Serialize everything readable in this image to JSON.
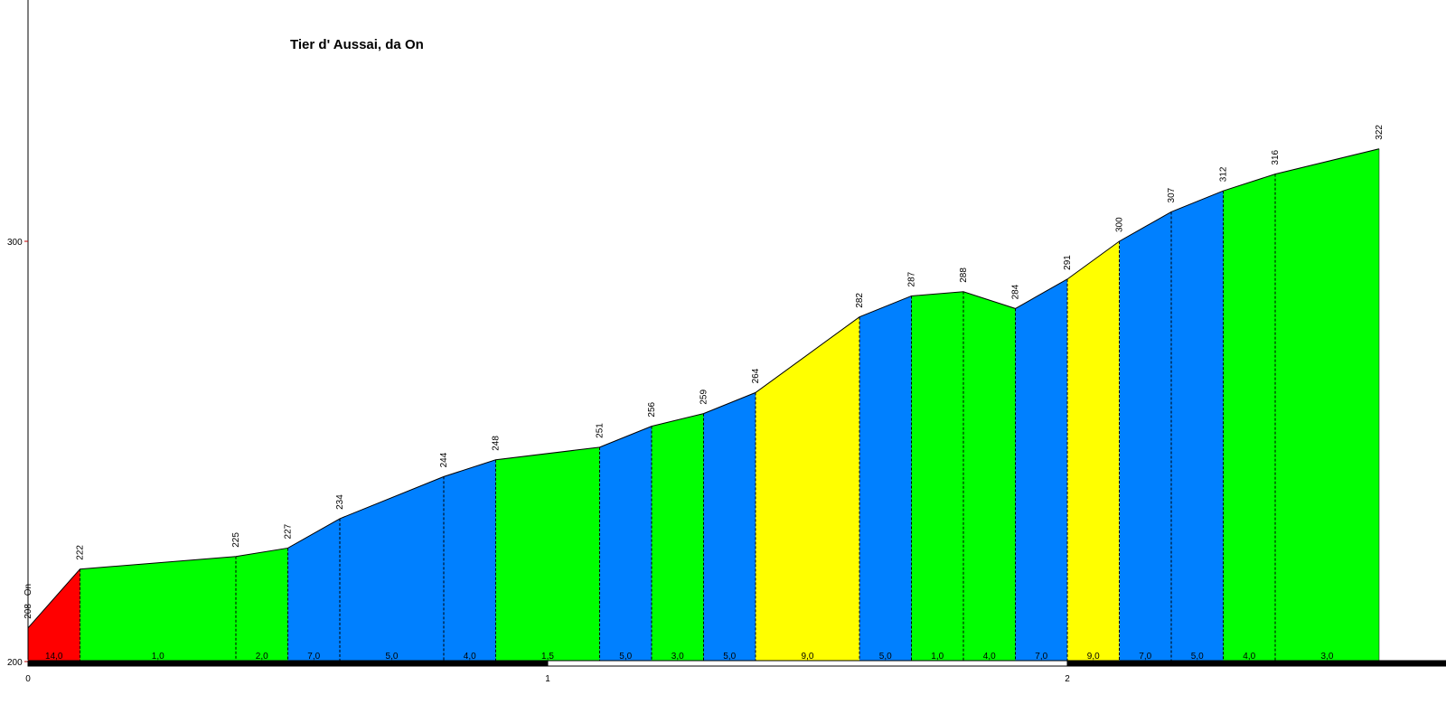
{
  "chart_data": {
    "type": "area",
    "title": "Tier d' Aussai, da On",
    "start_label": "208 - On",
    "xlim": [
      0,
      2.78
    ],
    "ylim": [
      200,
      322
    ],
    "x_ticks": [
      0,
      1,
      2
    ],
    "y_ticks": [
      200,
      300
    ],
    "points": [
      {
        "x": 0.0,
        "y": 208
      },
      {
        "x": 0.1,
        "y": 222
      },
      {
        "x": 0.4,
        "y": 225
      },
      {
        "x": 0.5,
        "y": 227
      },
      {
        "x": 0.6,
        "y": 234
      },
      {
        "x": 0.8,
        "y": 244
      },
      {
        "x": 0.9,
        "y": 248
      },
      {
        "x": 1.1,
        "y": 251
      },
      {
        "x": 1.2,
        "y": 256
      },
      {
        "x": 1.3,
        "y": 259
      },
      {
        "x": 1.4,
        "y": 264
      },
      {
        "x": 1.6,
        "y": 282
      },
      {
        "x": 1.7,
        "y": 287
      },
      {
        "x": 1.8,
        "y": 288
      },
      {
        "x": 1.9,
        "y": 284
      },
      {
        "x": 2.0,
        "y": 291
      },
      {
        "x": 2.1,
        "y": 300
      },
      {
        "x": 2.2,
        "y": 307
      },
      {
        "x": 2.3,
        "y": 312
      },
      {
        "x": 2.4,
        "y": 316
      },
      {
        "x": 2.6,
        "y": 322
      }
    ],
    "segments": [
      {
        "grade": "14,0",
        "color": "#ff0000"
      },
      {
        "grade": "1,0",
        "color": "#00ff00"
      },
      {
        "grade": "2,0",
        "color": "#00ff00"
      },
      {
        "grade": "7,0",
        "color": "#0080ff"
      },
      {
        "grade": "5,0",
        "color": "#0080ff"
      },
      {
        "grade": "4,0",
        "color": "#0080ff"
      },
      {
        "grade": "1,5",
        "color": "#00ff00"
      },
      {
        "grade": "5,0",
        "color": "#0080ff"
      },
      {
        "grade": "3,0",
        "color": "#00ff00"
      },
      {
        "grade": "5,0",
        "color": "#0080ff"
      },
      {
        "grade": "9,0",
        "color": "#ffff00"
      },
      {
        "grade": "5,0",
        "color": "#0080ff"
      },
      {
        "grade": "1,0",
        "color": "#00ff00"
      },
      {
        "grade": "4,0",
        "color": "#00ff00"
      },
      {
        "grade": "7,0",
        "color": "#0080ff"
      },
      {
        "grade": "9,0",
        "color": "#ffff00"
      },
      {
        "grade": "7,0",
        "color": "#0080ff"
      },
      {
        "grade": "5,0",
        "color": "#0080ff"
      },
      {
        "grade": "4,0",
        "color": "#00ff00"
      },
      {
        "grade": "3,0",
        "color": "#00ff00"
      }
    ]
  }
}
